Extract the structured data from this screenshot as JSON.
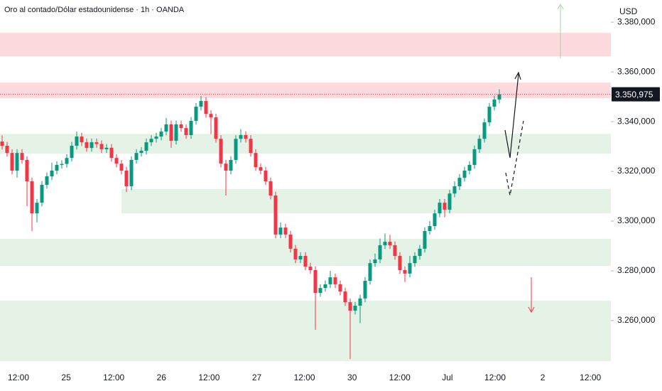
{
  "chart_data": {
    "type": "candlestick",
    "title": "Oro al contado/Dólar estadounidense · 1h · OANDA",
    "currency": "USD",
    "up_color": "#089981",
    "down_color": "#f23645",
    "ylim": [
      3241.7,
      3388.9
    ],
    "yticks": [
      {
        "value": 3380,
        "label": "3.380,000"
      },
      {
        "value": 3360,
        "label": "3.360,000"
      },
      {
        "value": 3340,
        "label": "3.340,000"
      },
      {
        "value": 3320,
        "label": "3.320,000"
      },
      {
        "value": 3300,
        "label": "3.300,000"
      },
      {
        "value": 3280,
        "label": "3.280,000"
      },
      {
        "value": 3260,
        "label": "3.260,000"
      }
    ],
    "xticks": [
      "12:00",
      "25",
      "12:00",
      "26",
      "12:00",
      "27",
      "12:00",
      "30",
      "12:00",
      "Jul",
      "12:00",
      "2",
      "12:00"
    ],
    "last_price": {
      "value": 3350.975,
      "label": "3.350,975"
    },
    "zones": [
      {
        "low": 3366.3,
        "high": 3375.7,
        "color": "#fddadd",
        "start": 0
      },
      {
        "low": 3349.4,
        "high": 3355.7,
        "color": "#fddadd",
        "start": 0
      },
      {
        "low": 3327.1,
        "high": 3335.1,
        "color": "#e4f3e6",
        "start": 0
      },
      {
        "low": 3303.1,
        "high": 3312.9,
        "color": "#e4f3e6",
        "start": 24
      },
      {
        "low": 3282.0,
        "high": 3292.9,
        "color": "#e4f3e6",
        "start": 0
      },
      {
        "low": 3243.7,
        "high": 3268.0,
        "color": "#e4f3e6",
        "start": 0
      }
    ],
    "ohlc": [
      [
        3332.0,
        3334.5,
        3328.8,
        3330.3
      ],
      [
        3330.3,
        3331.8,
        3325.9,
        3327.4
      ],
      [
        3327.4,
        3328.9,
        3318.8,
        3320.3
      ],
      [
        3320.3,
        3328.9,
        3317.5,
        3327.4
      ],
      [
        3327.4,
        3328.9,
        3323.1,
        3324.6
      ],
      [
        3324.6,
        3326.1,
        3306.0,
        3316.0
      ],
      [
        3316.0,
        3317.5,
        3296.0,
        3303.1
      ],
      [
        3303.1,
        3308.9,
        3299.5,
        3307.4
      ],
      [
        3307.4,
        3316.1,
        3305.9,
        3314.6
      ],
      [
        3314.6,
        3319.5,
        3313.1,
        3318.0
      ],
      [
        3318.0,
        3323.5,
        3316.5,
        3320.3
      ],
      [
        3320.3,
        3324.1,
        3318.8,
        3322.6
      ],
      [
        3322.6,
        3324.5,
        3321.1,
        3323.0
      ],
      [
        3323.0,
        3326.9,
        3321.5,
        3325.4
      ],
      [
        3325.4,
        3331.8,
        3323.9,
        3330.3
      ],
      [
        3330.3,
        3336.0,
        3328.8,
        3334.0
      ],
      [
        3334.0,
        3335.5,
        3330.2,
        3331.7
      ],
      [
        3331.7,
        3333.2,
        3327.9,
        3329.4
      ],
      [
        3329.4,
        3333.2,
        3327.9,
        3331.7
      ],
      [
        3331.7,
        3333.2,
        3329.5,
        3331.0
      ],
      [
        3331.0,
        3332.5,
        3327.4,
        3328.9
      ],
      [
        3328.9,
        3331.0,
        3327.4,
        3329.5
      ],
      [
        3329.5,
        3331.0,
        3323.9,
        3325.4
      ],
      [
        3325.4,
        3326.9,
        3321.6,
        3323.1
      ],
      [
        3323.1,
        3324.6,
        3318.8,
        3320.3
      ],
      [
        3320.3,
        3321.8,
        3311.7,
        3314.0
      ],
      [
        3314.0,
        3326.1,
        3312.5,
        3324.6
      ],
      [
        3324.6,
        3328.9,
        3323.1,
        3327.4
      ],
      [
        3327.4,
        3329.8,
        3325.9,
        3328.3
      ],
      [
        3328.3,
        3333.2,
        3326.8,
        3331.7
      ],
      [
        3331.7,
        3334.6,
        3330.2,
        3333.1
      ],
      [
        3333.1,
        3335.5,
        3331.6,
        3334.0
      ],
      [
        3334.0,
        3337.5,
        3332.5,
        3336.0
      ],
      [
        3336.0,
        3341.5,
        3334.5,
        3338.9
      ],
      [
        3338.9,
        3340.4,
        3329.5,
        3332.3
      ],
      [
        3332.3,
        3340.4,
        3330.8,
        3338.9
      ],
      [
        3338.9,
        3340.4,
        3335.9,
        3337.4
      ],
      [
        3337.4,
        3338.9,
        3333.1,
        3334.6
      ],
      [
        3334.6,
        3341.8,
        3333.1,
        3340.3
      ],
      [
        3340.3,
        3347.5,
        3338.8,
        3346.0
      ],
      [
        3346.0,
        3350.3,
        3344.5,
        3348.3
      ],
      [
        3348.3,
        3349.8,
        3341.6,
        3343.1
      ],
      [
        3343.1,
        3344.6,
        3335.0,
        3341.7
      ],
      [
        3341.7,
        3343.2,
        3331.6,
        3333.1
      ],
      [
        3333.1,
        3334.6,
        3321.6,
        3323.1
      ],
      [
        3323.1,
        3324.6,
        3310.3,
        3320.3
      ],
      [
        3320.3,
        3326.1,
        3318.8,
        3324.6
      ],
      [
        3324.6,
        3334.6,
        3323.1,
        3333.1
      ],
      [
        3333.1,
        3337.0,
        3331.6,
        3334.6
      ],
      [
        3334.6,
        3336.1,
        3331.6,
        3333.1
      ],
      [
        3333.1,
        3334.6,
        3325.9,
        3327.4
      ],
      [
        3327.4,
        3328.9,
        3320.2,
        3321.7
      ],
      [
        3321.7,
        3323.2,
        3318.8,
        3320.3
      ],
      [
        3320.3,
        3321.8,
        3314.5,
        3316.0
      ],
      [
        3316.0,
        3317.5,
        3308.8,
        3310.3
      ],
      [
        3310.3,
        3311.8,
        3293.1,
        3294.6
      ],
      [
        3294.6,
        3299.5,
        3293.1,
        3297.4
      ],
      [
        3297.4,
        3298.9,
        3293.1,
        3294.6
      ],
      [
        3294.6,
        3296.1,
        3287.4,
        3288.9
      ],
      [
        3288.9,
        3290.4,
        3283.1,
        3284.6
      ],
      [
        3284.6,
        3287.5,
        3283.1,
        3286.0
      ],
      [
        3286.0,
        3287.5,
        3280.2,
        3281.7
      ],
      [
        3281.7,
        3283.2,
        3278.8,
        3280.3
      ],
      [
        3280.3,
        3281.8,
        3256.3,
        3271.1
      ],
      [
        3271.1,
        3274.6,
        3269.6,
        3273.1
      ],
      [
        3273.1,
        3276.1,
        3271.6,
        3274.6
      ],
      [
        3274.6,
        3280.0,
        3273.1,
        3277.4
      ],
      [
        3277.4,
        3278.9,
        3273.1,
        3274.6
      ],
      [
        3274.6,
        3276.1,
        3270.2,
        3271.7
      ],
      [
        3271.7,
        3273.2,
        3265.9,
        3267.4
      ],
      [
        3267.4,
        3268.9,
        3244.6,
        3264.0
      ],
      [
        3264.0,
        3267.5,
        3262.5,
        3266.0
      ],
      [
        3266.0,
        3270.4,
        3259.0,
        3268.9
      ],
      [
        3268.9,
        3277.5,
        3267.4,
        3276.0
      ],
      [
        3276.0,
        3284.6,
        3274.5,
        3283.1
      ],
      [
        3283.1,
        3287.0,
        3281.6,
        3284.6
      ],
      [
        3284.6,
        3293.0,
        3283.1,
        3290.3
      ],
      [
        3290.3,
        3295.0,
        3288.8,
        3291.7
      ],
      [
        3291.7,
        3294.5,
        3288.8,
        3290.3
      ],
      [
        3290.3,
        3291.8,
        3284.5,
        3286.0
      ],
      [
        3286.0,
        3287.5,
        3278.8,
        3280.3
      ],
      [
        3280.3,
        3281.8,
        3275.5,
        3278.9
      ],
      [
        3278.9,
        3286.0,
        3277.4,
        3283.1
      ],
      [
        3283.1,
        3287.5,
        3281.6,
        3286.0
      ],
      [
        3286.0,
        3290.4,
        3284.5,
        3288.9
      ],
      [
        3288.9,
        3297.5,
        3287.4,
        3296.0
      ],
      [
        3296.0,
        3300.0,
        3294.5,
        3298.0
      ],
      [
        3298.0,
        3304.6,
        3296.5,
        3303.1
      ],
      [
        3303.1,
        3308.9,
        3301.6,
        3307.4
      ],
      [
        3307.4,
        3308.9,
        3301.5,
        3304.6
      ],
      [
        3304.6,
        3312.6,
        3303.1,
        3311.1
      ],
      [
        3311.1,
        3316.0,
        3309.6,
        3314.0
      ],
      [
        3314.0,
        3318.9,
        3312.5,
        3317.4
      ],
      [
        3317.4,
        3321.8,
        3315.9,
        3320.3
      ],
      [
        3320.3,
        3324.1,
        3318.8,
        3322.6
      ],
      [
        3322.6,
        3330.4,
        3321.1,
        3328.9
      ],
      [
        3328.9,
        3334.6,
        3327.4,
        3333.1
      ],
      [
        3333.1,
        3341.2,
        3331.6,
        3339.7
      ],
      [
        3339.7,
        3347.5,
        3338.2,
        3346.0
      ],
      [
        3346.0,
        3350.4,
        3344.5,
        3348.9
      ],
      [
        3348.9,
        3353.0,
        3347.4,
        3350.975
      ]
    ]
  }
}
